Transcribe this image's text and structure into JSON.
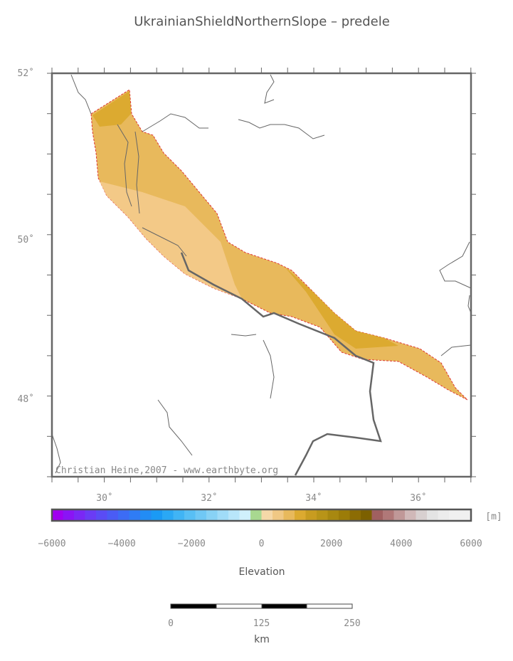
{
  "title": "UkrainianShieldNorthernSlope – predele",
  "map": {
    "lat_labels": [
      "52˚",
      "50˚",
      "48˚"
    ],
    "lon_labels": [
      "30˚",
      "32˚",
      "34˚",
      "36˚"
    ],
    "credit": "Christian Heine,2007 - www.earthbyte.org"
  },
  "colorbar": {
    "unit": "[m]",
    "labels": [
      "−6000",
      "−4000",
      "−2000",
      "0",
      "2000",
      "4000",
      "6000"
    ],
    "title": "Elevation"
  },
  "scalebar": {
    "labels": [
      "0",
      "125",
      "250"
    ],
    "unit": "km"
  }
}
